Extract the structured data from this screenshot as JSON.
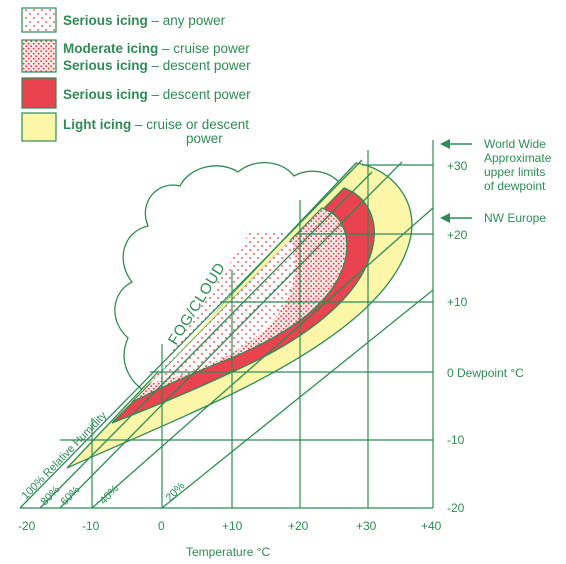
{
  "legend": [
    {
      "title": "Serious icing",
      "rest": " – any power",
      "swatch": "dots-light"
    },
    {
      "title": "Moderate icing",
      "rest": " – cruise power",
      "title2": "Serious icing",
      "rest2": " – descent power",
      "swatch": "dots-dense"
    },
    {
      "title": "Serious icing",
      "rest": " – descent power",
      "swatch": "red"
    },
    {
      "title": "Light icing",
      "rest": " – cruise or descent",
      "line2": "power",
      "swatch": "yellow"
    }
  ],
  "notes": {
    "world_wide": [
      "World Wide",
      "Approximate",
      "upper limits",
      "of dewpoint"
    ],
    "nw_europe": "NW Europe"
  },
  "fog_label": "FOG/CLOUD",
  "x_ticks": [
    "-20",
    "-10",
    "0",
    "+10",
    "+20",
    "+30",
    "+40"
  ],
  "y_ticks": [
    "+30",
    "+20",
    "+10",
    "0 Dewpoint °C",
    "-10",
    "-20"
  ],
  "x_label": "Temperature °C",
  "rh_labels": [
    "100% Relative Humidity",
    "80%",
    "60%",
    "40%",
    "20%"
  ],
  "colors": {
    "green": "#2e8b57",
    "red": "#e8434f",
    "yellow": "#fbf6a8",
    "dot_red": "#e23a3a"
  }
}
